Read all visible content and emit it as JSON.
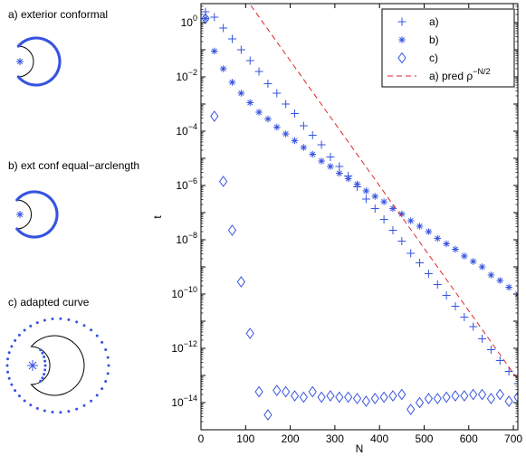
{
  "panels": [
    {
      "label": "a) exterior conformal"
    },
    {
      "label": "b) ext conf equal−arclength"
    },
    {
      "label": "c) adapted curve"
    }
  ],
  "colors": {
    "marker": "#3653e0",
    "prediction": "#e0262b",
    "axis": "#000000",
    "curve": "#000000"
  },
  "chart_data": {
    "type": "scatter",
    "title": "",
    "xlabel": "N",
    "ylabel": "t",
    "xlim": [
      0,
      710
    ],
    "ylim_log10": [
      -15,
      0.7
    ],
    "yscale": "log",
    "x_ticks": [
      0,
      100,
      200,
      300,
      400,
      500,
      600,
      700
    ],
    "x_tick_labels": [
      "0",
      "100",
      "200",
      "300",
      "400",
      "500",
      "600",
      "700"
    ],
    "y_ticks_log10": [
      0,
      -2,
      -4,
      -6,
      -8,
      -10,
      -12,
      -14
    ],
    "y_tick_labels": [
      {
        "base": "10",
        "exp": "0"
      },
      {
        "base": "10",
        "exp": "−2"
      },
      {
        "base": "10",
        "exp": "−4"
      },
      {
        "base": "10",
        "exp": "−6"
      },
      {
        "base": "10",
        "exp": "−8"
      },
      {
        "base": "10",
        "exp": "−10"
      },
      {
        "base": "10",
        "exp": "−12"
      },
      {
        "base": "10",
        "exp": "−14"
      }
    ],
    "grid": false,
    "legend_position": "top-right",
    "legend": [
      {
        "label": "a)",
        "marker": "plus"
      },
      {
        "label": "b)",
        "marker": "star"
      },
      {
        "label": "c)",
        "marker": "diamond"
      },
      {
        "label": "a) pred ρ",
        "sup": "−N/2",
        "marker": "dashed-line"
      }
    ],
    "series": [
      {
        "name": "a)",
        "marker": "plus",
        "x": [
          10,
          30,
          50,
          70,
          90,
          110,
          130,
          150,
          170,
          190,
          210,
          230,
          250,
          270,
          290,
          310,
          330,
          350,
          370,
          390,
          410,
          430,
          450,
          470,
          490,
          510,
          530,
          550,
          570,
          590,
          610,
          630,
          650,
          670,
          690,
          710
        ],
        "log10_y": [
          0.4,
          0.2,
          -0.2,
          -0.6,
          -1.0,
          -1.4,
          -1.8,
          -2.25,
          -2.6,
          -3.0,
          -3.35,
          -3.8,
          -4.15,
          -4.5,
          -4.95,
          -5.3,
          -5.65,
          -6.05,
          -6.5,
          -6.85,
          -7.25,
          -7.65,
          -8.05,
          -8.5,
          -8.85,
          -9.25,
          -9.65,
          -10.05,
          -10.45,
          -10.85,
          -11.2,
          -11.65,
          -12.05,
          -12.45,
          -12.85,
          -13.3
        ]
      },
      {
        "name": "b)",
        "marker": "star",
        "x": [
          10,
          30,
          50,
          70,
          90,
          110,
          130,
          150,
          170,
          190,
          210,
          230,
          250,
          270,
          290,
          310,
          330,
          350,
          370,
          390,
          410,
          430,
          450,
          470,
          490,
          510,
          530,
          550,
          570,
          590,
          610,
          630,
          650,
          670,
          690,
          710
        ],
        "log10_y": [
          0.15,
          -1.05,
          -1.7,
          -2.2,
          -2.6,
          -2.95,
          -3.3,
          -3.55,
          -3.85,
          -4.1,
          -4.35,
          -4.6,
          -4.85,
          -5.1,
          -5.3,
          -5.55,
          -5.75,
          -5.95,
          -6.2,
          -6.4,
          -6.6,
          -6.85,
          -7.05,
          -7.3,
          -7.5,
          -7.7,
          -7.95,
          -8.15,
          -8.35,
          -8.6,
          -8.8,
          -9.0,
          -9.3,
          -9.5,
          -9.75,
          -10.0
        ]
      },
      {
        "name": "c)",
        "marker": "diamond",
        "x": [
          10,
          30,
          50,
          70,
          90,
          110,
          130,
          150,
          170,
          190,
          210,
          230,
          250,
          270,
          290,
          310,
          330,
          350,
          370,
          390,
          410,
          430,
          450,
          470,
          490,
          510,
          530,
          550,
          570,
          590,
          610,
          630,
          650,
          670,
          690,
          710
        ],
        "log10_y": [
          0.15,
          -3.45,
          -5.85,
          -7.65,
          -9.55,
          -11.45,
          -13.6,
          -14.45,
          -13.55,
          -13.6,
          -13.75,
          -13.8,
          -13.6,
          -13.8,
          -13.75,
          -13.8,
          -13.8,
          -13.85,
          -13.95,
          -13.85,
          -13.8,
          -13.75,
          -13.7,
          -14.25,
          -14.0,
          -13.85,
          -13.85,
          -13.8,
          -13.75,
          -13.75,
          -13.7,
          -13.7,
          -13.85,
          -13.7,
          -13.95,
          -13.8
        ]
      },
      {
        "name": "a) pred ρ^(−N/2)",
        "marker": "dashed-line",
        "x": [
          100,
          710
        ],
        "log10_y": [
          0.9,
          -13.15
        ]
      }
    ]
  }
}
